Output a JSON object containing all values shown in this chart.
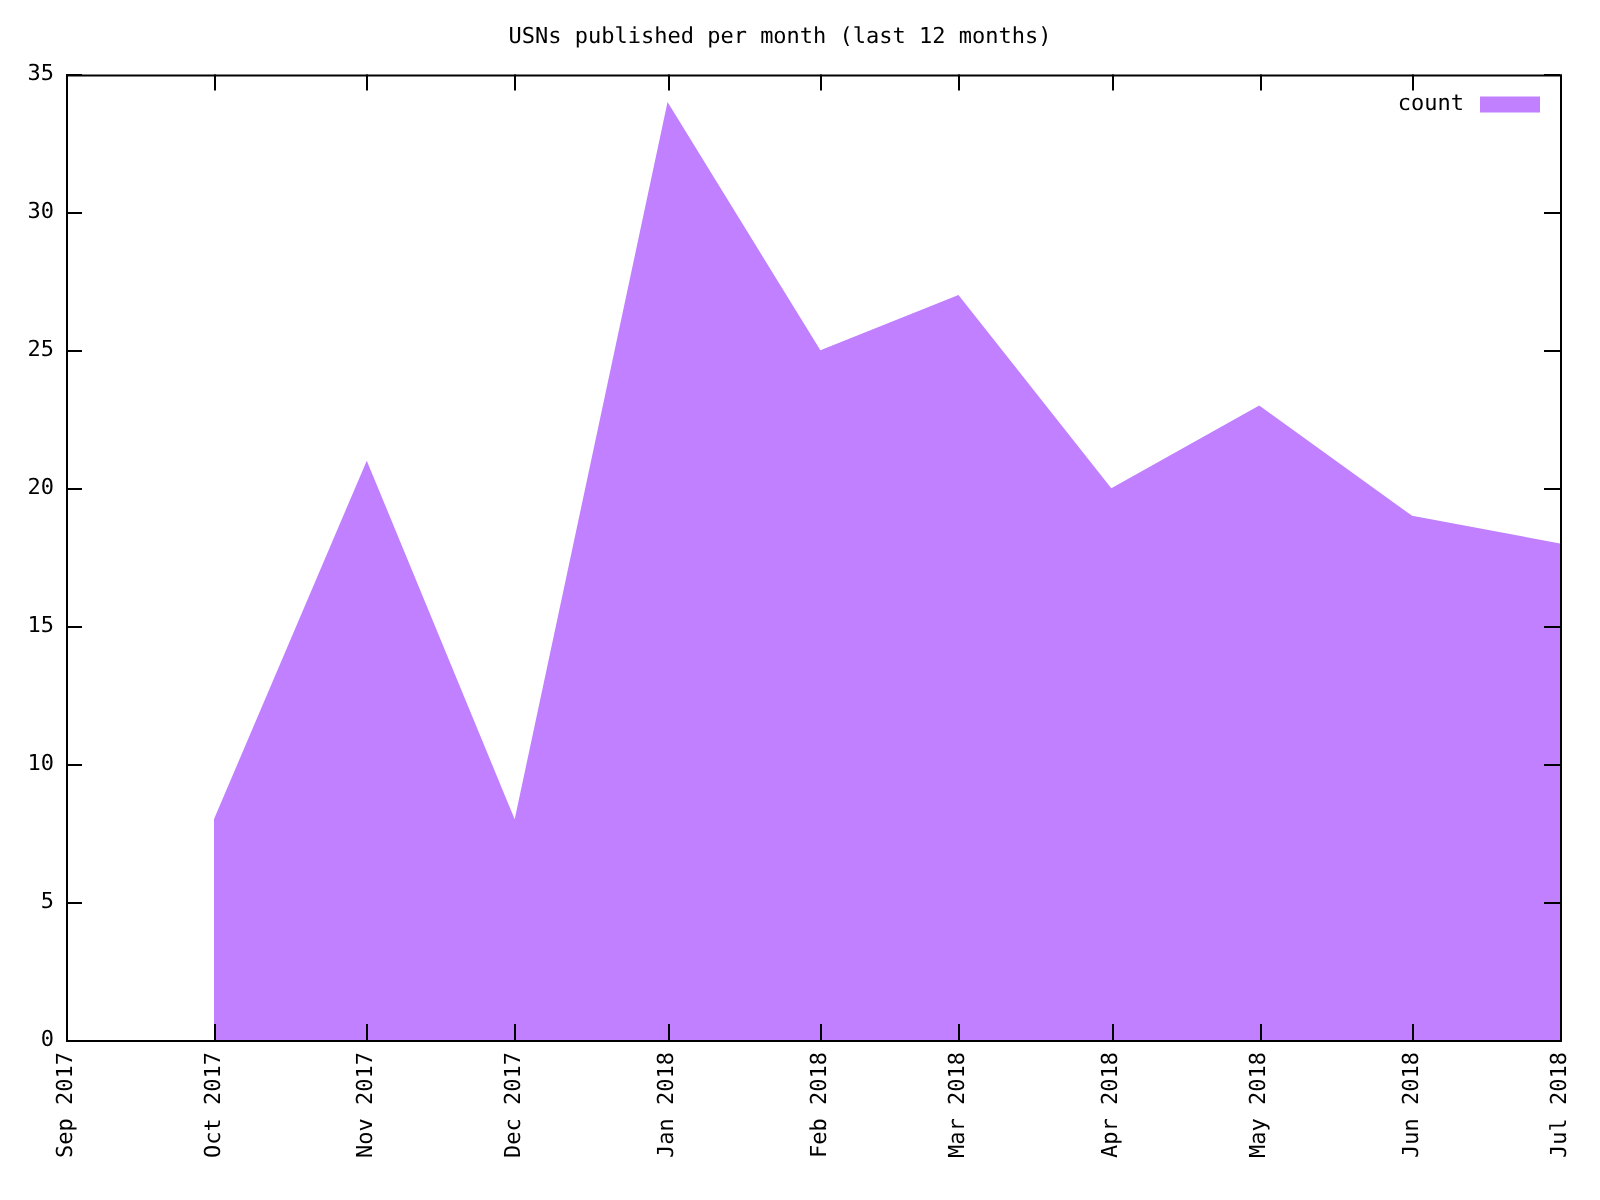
{
  "chart_data": {
    "type": "area",
    "title": "USNs published per month (last 12 months)",
    "x": [
      "2017-10",
      "2017-11",
      "2017-12",
      "2018-01",
      "2018-02",
      "2018-03",
      "2018-04",
      "2018-05",
      "2018-06",
      "2018-07"
    ],
    "series": [
      {
        "name": "count",
        "color": "#c080ff",
        "values": [
          8,
          21,
          8,
          34,
          25,
          27,
          20,
          23,
          19,
          18
        ]
      }
    ],
    "xlim": [
      "2017-09",
      "2018-07"
    ],
    "xticks": [
      {
        "value": "2017-09",
        "label": "Sep 2017"
      },
      {
        "value": "2017-10",
        "label": "Oct 2017"
      },
      {
        "value": "2017-11",
        "label": "Nov 2017"
      },
      {
        "value": "2017-12",
        "label": "Dec 2017"
      },
      {
        "value": "2018-01",
        "label": "Jan 2018"
      },
      {
        "value": "2018-02",
        "label": "Feb 2018"
      },
      {
        "value": "2018-03",
        "label": "Mar 2018"
      },
      {
        "value": "2018-04",
        "label": "Apr 2018"
      },
      {
        "value": "2018-05",
        "label": "May 2018"
      },
      {
        "value": "2018-06",
        "label": "Jun 2018"
      },
      {
        "value": "2018-07",
        "label": "Jul 2018"
      }
    ],
    "ylim": [
      0,
      35
    ],
    "yticks": [
      0,
      5,
      10,
      15,
      20,
      25,
      30,
      35
    ],
    "grid": false,
    "legend": "top right"
  }
}
